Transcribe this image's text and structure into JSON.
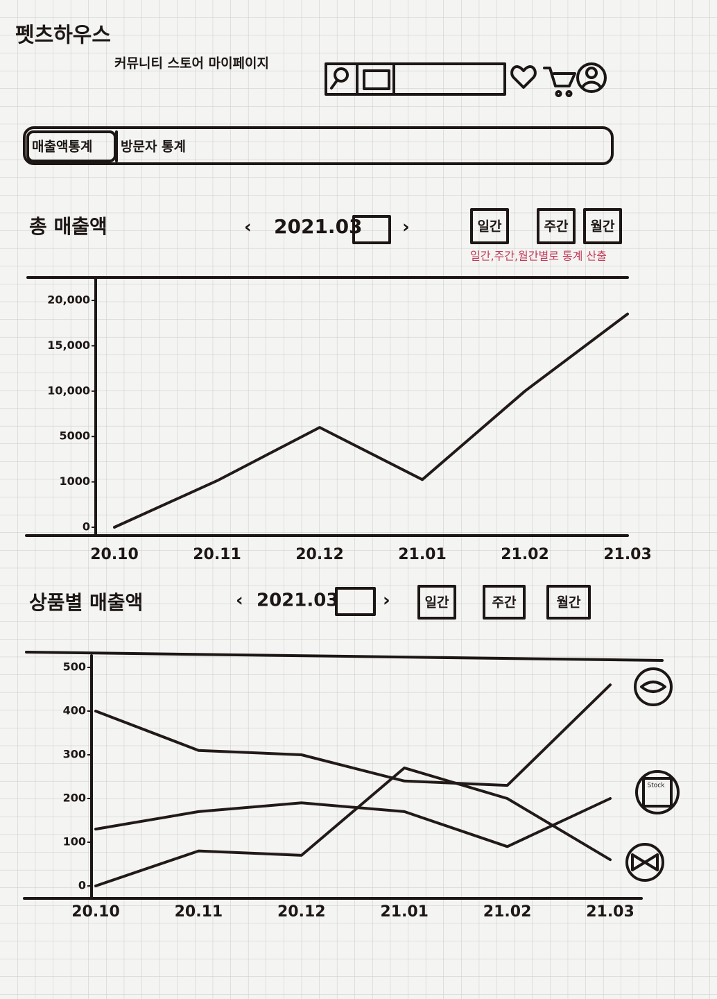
{
  "header": {
    "logo": "펫츠하우스",
    "nav": "커뮤니티 스토어 마이페이지"
  },
  "tabs": [
    "매출액통계",
    "방문자 통계"
  ],
  "sections": [
    {
      "title": "총 매출액",
      "date": "2021.03",
      "buttons": [
        "일간",
        "주간",
        "월간"
      ],
      "note": "일간,주간,월간별로 통계 산출"
    },
    {
      "title": "상품별 매출액",
      "date": "2021.03",
      "buttons": [
        "일간",
        "주간",
        "월간"
      ]
    }
  ],
  "chart_data": [
    {
      "type": "line",
      "categories": [
        "20.10",
        "20.11",
        "20.12",
        "21.01",
        "21.02",
        "21.03"
      ],
      "series": [
        {
          "color": "#221a18",
          "values": [
            0,
            1100,
            6000,
            1200,
            10000,
            18500
          ]
        }
      ],
      "ylim": [
        0,
        20000
      ],
      "yticks": [
        0,
        1000,
        5000,
        {
          "value": 10000,
          "label": "10,000"
        },
        {
          "value": 15000,
          "label": "15,000"
        },
        {
          "value": 20000,
          "label": "20,000"
        }
      ]
    },
    {
      "type": "line",
      "categories": [
        "20.10",
        "20.11",
        "20.12",
        "21.01",
        "21.02",
        "21.03"
      ],
      "series": [
        {
          "color": "#221a18",
          "values": [
            400,
            310,
            300,
            240,
            230,
            460
          ]
        },
        {
          "color": "#221a18",
          "values": [
            130,
            170,
            190,
            170,
            90,
            200
          ]
        },
        {
          "color": "#221a18",
          "values": [
            0,
            80,
            70,
            270,
            200,
            60
          ]
        }
      ],
      "ylim": [
        0,
        500
      ],
      "yticks": [
        0,
        100,
        200,
        300,
        400,
        500
      ],
      "annotations": [
        "Stock"
      ]
    }
  ]
}
